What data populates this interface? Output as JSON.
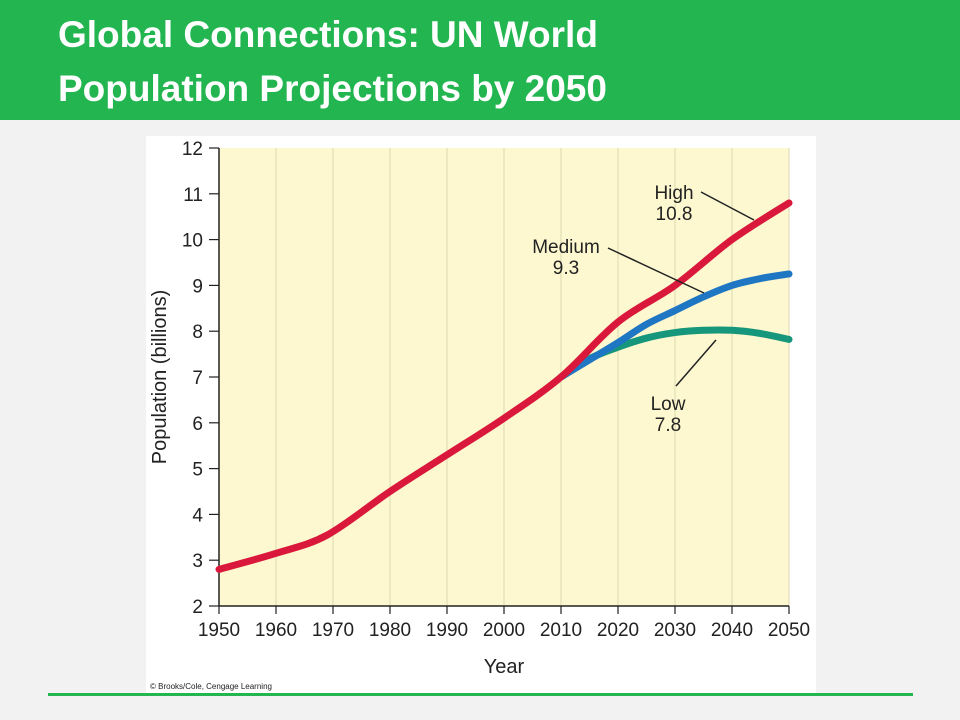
{
  "slide": {
    "title_line1": "Global Connections: UN World",
    "title_line2": "Population Projections by 2050",
    "accent_color": "#22b550"
  },
  "chart_data": {
    "type": "line",
    "title": "",
    "xlabel": "Year",
    "ylabel": "Population (billions)",
    "xlim": [
      1950,
      2050
    ],
    "ylim": [
      2,
      12
    ],
    "xticks": [
      1950,
      1960,
      1970,
      1980,
      1990,
      2000,
      2010,
      2020,
      2030,
      2040,
      2050
    ],
    "yticks": [
      2,
      3,
      4,
      5,
      6,
      7,
      8,
      9,
      10,
      11,
      12
    ],
    "grid": "vertical",
    "plot_background": "#fdf8d0",
    "credit": "© Brooks/Cole, Cengage Learning",
    "series": [
      {
        "name": "High",
        "value_label": "10.8",
        "color": "#d9183b",
        "x": [
          1950,
          1960,
          1969,
          1980,
          1990,
          2000,
          2010,
          2020,
          2030,
          2040,
          2050
        ],
        "y": [
          2.8,
          3.15,
          3.55,
          4.5,
          5.3,
          6.1,
          7.0,
          8.2,
          9.0,
          10.0,
          10.8
        ]
      },
      {
        "name": "Medium",
        "value_label": "9.3",
        "color": "#1f77c4",
        "x": [
          2010,
          2016,
          2020,
          2025,
          2030,
          2035,
          2040,
          2045,
          2050
        ],
        "y": [
          7.0,
          7.45,
          7.75,
          8.15,
          8.45,
          8.75,
          9.0,
          9.15,
          9.25
        ]
      },
      {
        "name": "Low",
        "value_label": "7.8",
        "color": "#16967a",
        "x": [
          2010,
          2015,
          2020,
          2025,
          2030,
          2035,
          2040,
          2045,
          2050
        ],
        "y": [
          7.0,
          7.4,
          7.65,
          7.85,
          7.97,
          8.02,
          8.02,
          7.95,
          7.82
        ]
      }
    ]
  }
}
